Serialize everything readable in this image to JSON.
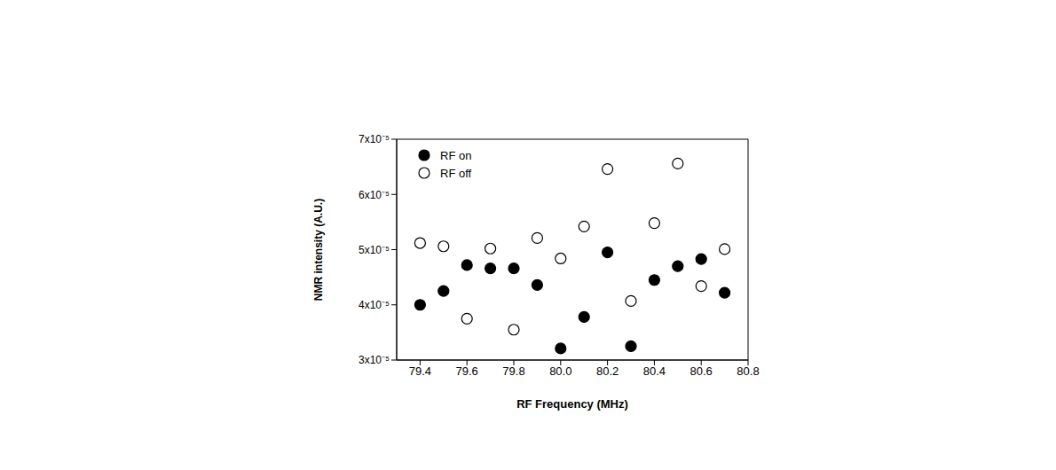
{
  "chart_data": {
    "type": "scatter",
    "x_label": "RF Frequency (MHz)",
    "y_label": "NMR intensity (A.U.)",
    "x": [
      79.4,
      79.5,
      79.6,
      79.7,
      79.8,
      79.9,
      80.0,
      80.1,
      80.2,
      80.3,
      80.4,
      80.5,
      80.6,
      80.7
    ],
    "series": [
      {
        "name": "RF on",
        "color": "#000000",
        "marker": "filled_circle",
        "values": [
          4e-05,
          4.25e-05,
          4.72e-05,
          4.66e-05,
          4.66e-05,
          4.36e-05,
          3.21e-05,
          3.78e-05,
          4.95e-05,
          3.25e-05,
          4.45e-05,
          4.7e-05,
          4.83e-05,
          4.22e-05
        ]
      },
      {
        "name": "RF off",
        "color": "#000000",
        "marker": "open_circle",
        "values": [
          5.12e-05,
          5.06e-05,
          3.75e-05,
          5.02e-05,
          3.55e-05,
          5.21e-05,
          4.84e-05,
          5.42e-05,
          6.46e-05,
          4.07e-05,
          5.48e-05,
          6.56e-05,
          4.34e-05,
          5.01e-05
        ]
      }
    ],
    "xlim": [
      79.3,
      80.8
    ],
    "xticks": [
      79.4,
      79.6,
      79.8,
      80.0,
      80.2,
      80.4,
      80.6,
      80.8
    ],
    "ylim": [
      3e-05,
      7e-05
    ],
    "yticks": [
      {
        "value": 3e-05,
        "label": "3x10⁻⁵"
      },
      {
        "value": 4e-05,
        "label": "4x10⁻⁵"
      },
      {
        "value": 5e-05,
        "label": "5x10⁻⁵"
      },
      {
        "value": 6e-05,
        "label": "6x10⁻⁵"
      },
      {
        "value": 7e-05,
        "label": "7x10⁻⁵"
      }
    ],
    "legend": "upper left",
    "grid": false
  }
}
